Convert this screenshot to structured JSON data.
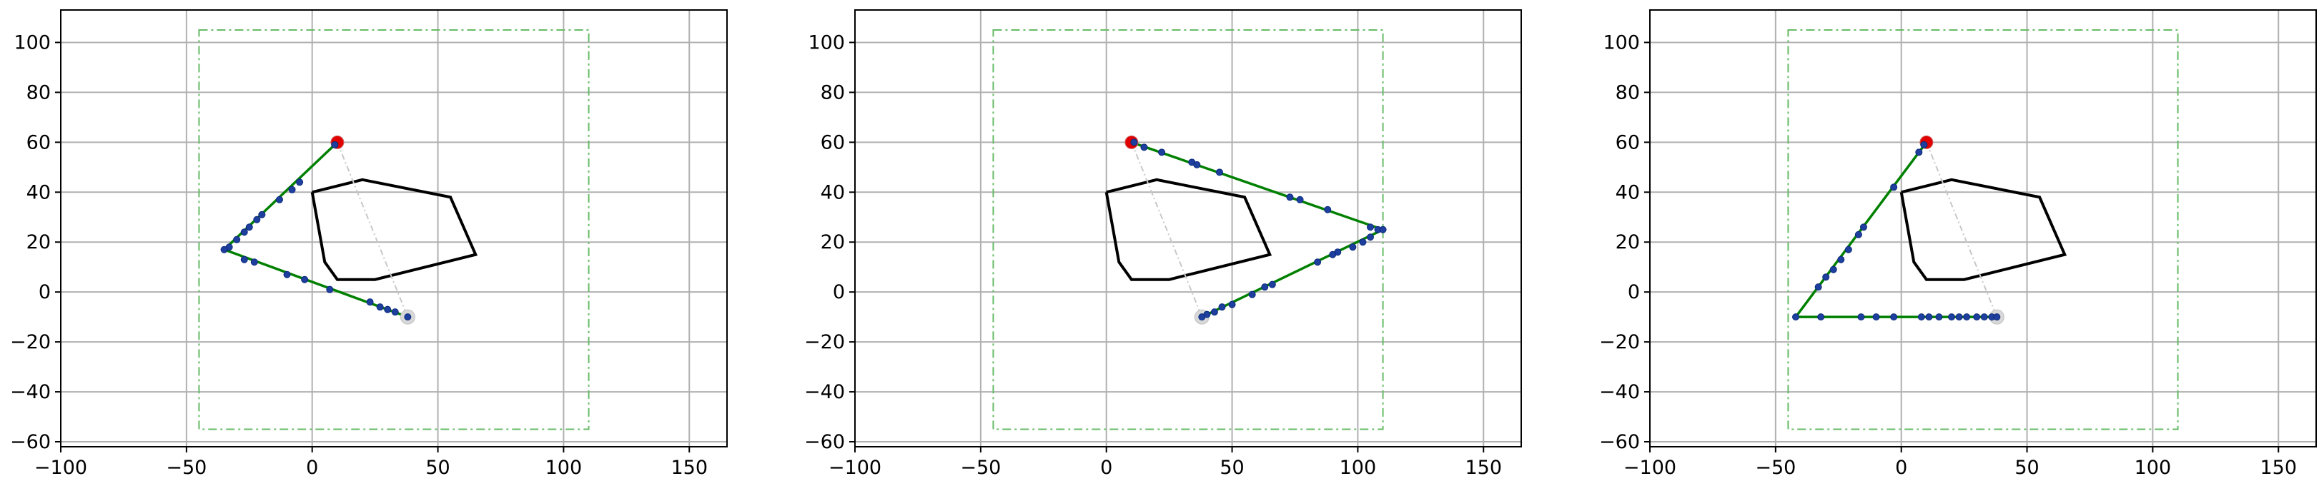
{
  "chart_data": [
    {
      "type": "line",
      "xlim": [
        -100,
        165
      ],
      "ylim": [
        -62,
        113
      ],
      "xticks": [
        -100,
        -50,
        0,
        50,
        100,
        150
      ],
      "yticks": [
        -60,
        -40,
        -20,
        0,
        20,
        40,
        60,
        80,
        100
      ],
      "xtick_labels": [
        "−100",
        "−50",
        "0",
        "50",
        "100",
        "150"
      ],
      "ytick_labels": [
        "−60",
        "−40",
        "−20",
        "0",
        "20",
        "40",
        "60",
        "80",
        "100"
      ],
      "grid": true,
      "colors": {
        "path": "#008000",
        "bounds": "#66bb66",
        "obstacle": "#000000",
        "start": "#e00000",
        "goal": "#d8d8d8",
        "waypoint": "#1f3f9f",
        "straight": "#c8c8c8"
      },
      "bounds": {
        "x": [
          -45,
          110
        ],
        "y": [
          -55,
          105
        ]
      },
      "obstacle": [
        [
          0,
          40
        ],
        [
          20,
          45
        ],
        [
          55,
          38
        ],
        [
          65,
          15
        ],
        [
          25,
          5
        ],
        [
          10,
          5
        ],
        [
          5,
          12
        ],
        [
          0,
          40
        ]
      ],
      "start": [
        10,
        60
      ],
      "goal": [
        38,
        -10
      ],
      "path": [
        [
          10,
          60
        ],
        [
          -35,
          17
        ],
        [
          38,
          -10
        ]
      ],
      "waypoints": [
        [
          9,
          59
        ],
        [
          -5,
          44
        ],
        [
          -8,
          41
        ],
        [
          -13,
          37
        ],
        [
          -20,
          31
        ],
        [
          -22,
          29
        ],
        [
          -25,
          26
        ],
        [
          -27,
          24
        ],
        [
          -30,
          21
        ],
        [
          -33,
          18
        ],
        [
          -35,
          17
        ],
        [
          -27,
          13
        ],
        [
          -23,
          12
        ],
        [
          -10,
          7
        ],
        [
          -3,
          5
        ],
        [
          7,
          1
        ],
        [
          23,
          -4
        ],
        [
          27,
          -6
        ],
        [
          30,
          -7
        ],
        [
          33,
          -8
        ],
        [
          38,
          -10
        ]
      ]
    },
    {
      "type": "line",
      "xlim": [
        -100,
        165
      ],
      "ylim": [
        -62,
        113
      ],
      "xticks": [
        -100,
        -50,
        0,
        50,
        100,
        150
      ],
      "yticks": [
        -60,
        -40,
        -20,
        0,
        20,
        40,
        60,
        80,
        100
      ],
      "xtick_labels": [
        "−100",
        "−50",
        "0",
        "50",
        "100",
        "150"
      ],
      "ytick_labels": [
        "−60",
        "−40",
        "−20",
        "0",
        "20",
        "40",
        "60",
        "80",
        "100"
      ],
      "grid": true,
      "colors": {
        "path": "#008000",
        "bounds": "#66bb66",
        "obstacle": "#000000",
        "start": "#e00000",
        "goal": "#d8d8d8",
        "waypoint": "#1f3f9f",
        "straight": "#c8c8c8"
      },
      "bounds": {
        "x": [
          -45,
          110
        ],
        "y": [
          -55,
          105
        ]
      },
      "obstacle": [
        [
          0,
          40
        ],
        [
          20,
          45
        ],
        [
          55,
          38
        ],
        [
          65,
          15
        ],
        [
          25,
          5
        ],
        [
          10,
          5
        ],
        [
          5,
          12
        ],
        [
          0,
          40
        ]
      ],
      "start": [
        10,
        60
      ],
      "goal": [
        38,
        -10
      ],
      "path": [
        [
          10,
          60
        ],
        [
          110,
          25
        ],
        [
          38,
          -10
        ]
      ],
      "waypoints": [
        [
          11,
          60
        ],
        [
          15,
          58
        ],
        [
          22,
          56
        ],
        [
          34,
          52
        ],
        [
          36,
          51
        ],
        [
          45,
          48
        ],
        [
          73,
          38
        ],
        [
          77,
          37
        ],
        [
          88,
          33
        ],
        [
          105,
          26
        ],
        [
          108,
          25
        ],
        [
          110,
          25
        ],
        [
          105,
          22
        ],
        [
          102,
          20
        ],
        [
          98,
          18
        ],
        [
          92,
          16
        ],
        [
          90,
          15
        ],
        [
          84,
          12
        ],
        [
          66,
          3
        ],
        [
          63,
          2
        ],
        [
          58,
          -1
        ],
        [
          50,
          -5
        ],
        [
          46,
          -6
        ],
        [
          43,
          -8
        ],
        [
          40,
          -9
        ],
        [
          38,
          -10
        ]
      ]
    },
    {
      "type": "line",
      "xlim": [
        -100,
        165
      ],
      "ylim": [
        -62,
        113
      ],
      "xticks": [
        -100,
        -50,
        0,
        50,
        100,
        150
      ],
      "yticks": [
        -60,
        -40,
        -20,
        0,
        20,
        40,
        60,
        80,
        100
      ],
      "xtick_labels": [
        "−100",
        "−50",
        "0",
        "50",
        "100",
        "150"
      ],
      "ytick_labels": [
        "−60",
        "−40",
        "−20",
        "0",
        "20",
        "40",
        "60",
        "80",
        "100"
      ],
      "grid": true,
      "colors": {
        "path": "#008000",
        "bounds": "#66bb66",
        "obstacle": "#000000",
        "start": "#e00000",
        "goal": "#d8d8d8",
        "waypoint": "#1f3f9f",
        "straight": "#c8c8c8"
      },
      "bounds": {
        "x": [
          -45,
          110
        ],
        "y": [
          -55,
          105
        ]
      },
      "obstacle": [
        [
          0,
          40
        ],
        [
          20,
          45
        ],
        [
          55,
          38
        ],
        [
          65,
          15
        ],
        [
          25,
          5
        ],
        [
          10,
          5
        ],
        [
          5,
          12
        ],
        [
          0,
          40
        ]
      ],
      "start": [
        10,
        60
      ],
      "goal": [
        38,
        -10
      ],
      "path": [
        [
          10,
          60
        ],
        [
          -42,
          -10
        ],
        [
          38,
          -10
        ]
      ],
      "waypoints": [
        [
          9,
          59
        ],
        [
          7,
          56
        ],
        [
          -3,
          42
        ],
        [
          -15,
          26
        ],
        [
          -17,
          23
        ],
        [
          -21,
          17
        ],
        [
          -24,
          13
        ],
        [
          -27,
          9
        ],
        [
          -30,
          6
        ],
        [
          -33,
          2
        ],
        [
          -42,
          -10
        ],
        [
          -32,
          -10
        ],
        [
          -16,
          -10
        ],
        [
          -10,
          -10
        ],
        [
          -3,
          -10
        ],
        [
          8,
          -10
        ],
        [
          11,
          -10
        ],
        [
          15,
          -10
        ],
        [
          20,
          -10
        ],
        [
          23,
          -10
        ],
        [
          26,
          -10
        ],
        [
          30,
          -10
        ],
        [
          33,
          -10
        ],
        [
          36,
          -10
        ],
        [
          38,
          -10
        ]
      ]
    }
  ]
}
